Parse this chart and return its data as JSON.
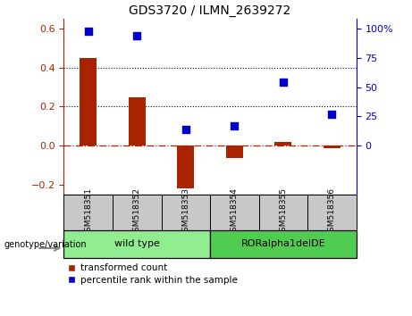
{
  "title": "GDS3720 / ILMN_2639272",
  "samples": [
    "GSM518351",
    "GSM518352",
    "GSM518353",
    "GSM518354",
    "GSM518355",
    "GSM518356"
  ],
  "transformed_count": [
    0.45,
    0.25,
    -0.22,
    -0.065,
    0.018,
    -0.012
  ],
  "percentile_rank": [
    98,
    94,
    14,
    17,
    54,
    27
  ],
  "groups": [
    {
      "label": "wild type",
      "indices": [
        0,
        1,
        2
      ],
      "color": "#90EE90"
    },
    {
      "label": "RORalpha1delDE",
      "indices": [
        3,
        4,
        5
      ],
      "color": "#50CC50"
    }
  ],
  "left_ylim": [
    -0.25,
    0.65
  ],
  "left_yticks": [
    -0.2,
    0.0,
    0.2,
    0.4,
    0.6
  ],
  "right_ylim": [
    -8.125,
    130
  ],
  "right_yticks": [
    0,
    25,
    50,
    75,
    100
  ],
  "right_yticklabels": [
    "0",
    "25",
    "50",
    "75",
    "100%"
  ],
  "bar_color": "#AA2200",
  "dot_color": "#0000CC",
  "zero_line_color": "#AA2200",
  "label_transformed": "transformed count",
  "label_percentile": "percentile rank within the sample",
  "genotype_label": "genotype/variation",
  "header_bg": "#C8C8C8",
  "dot_size": 40,
  "bar_width": 0.35
}
